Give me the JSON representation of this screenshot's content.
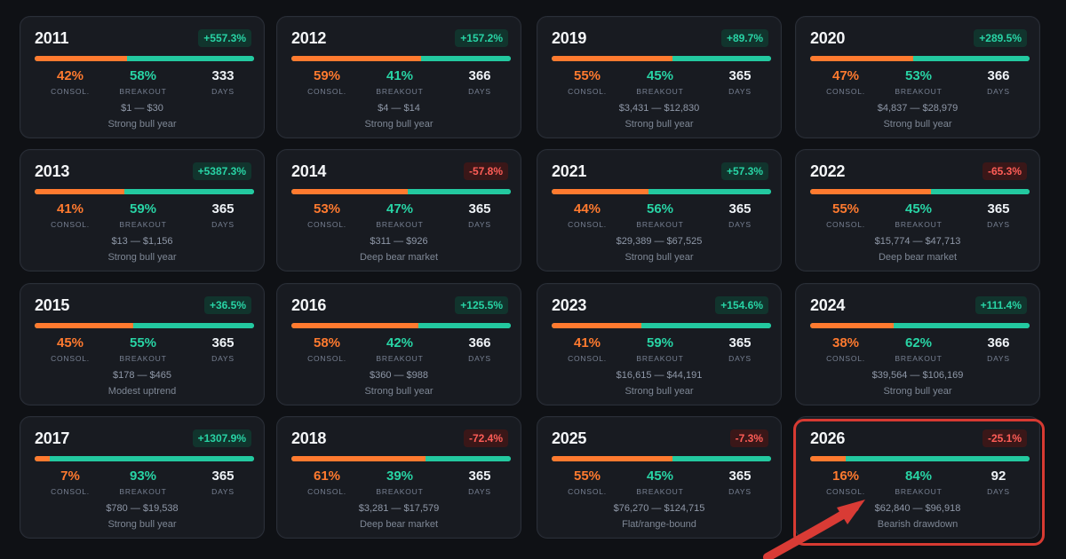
{
  "cards": [
    {
      "year": "2011",
      "change": "+557.3%",
      "tone": "pos",
      "consol_pct": "42%",
      "breakout_pct": "58%",
      "days": "333",
      "consol_label": "CONSOL.",
      "breakout_label": "BREAKOUT",
      "days_label": "DAYS",
      "range": "$1 — $30",
      "note": "Strong bull year",
      "consol_fraction": 0.42
    },
    {
      "year": "2013",
      "change": "+5387.3%",
      "tone": "pos",
      "consol_pct": "41%",
      "breakout_pct": "59%",
      "days": "365",
      "consol_label": "CONSOL.",
      "breakout_label": "BREAKOUT",
      "days_label": "DAYS",
      "range": "$13 — $1,156",
      "note": "Strong bull year",
      "consol_fraction": 0.41
    },
    {
      "year": "2015",
      "change": "+36.5%",
      "tone": "pos",
      "consol_pct": "45%",
      "breakout_pct": "55%",
      "days": "365",
      "consol_label": "CONSOL.",
      "breakout_label": "BREAKOUT",
      "days_label": "DAYS",
      "range": "$178 — $465",
      "note": "Modest uptrend",
      "consol_fraction": 0.45
    },
    {
      "year": "2017",
      "change": "+1307.9%",
      "tone": "pos",
      "consol_pct": "7%",
      "breakout_pct": "93%",
      "days": "365",
      "consol_label": "CONSOL.",
      "breakout_label": "BREAKOUT",
      "days_label": "DAYS",
      "range": "$780 — $19,538",
      "note": "Strong bull year",
      "consol_fraction": 0.07
    },
    {
      "year": "2012",
      "change": "+157.2%",
      "tone": "pos",
      "consol_pct": "59%",
      "breakout_pct": "41%",
      "days": "366",
      "consol_label": "CONSOL.",
      "breakout_label": "BREAKOUT",
      "days_label": "DAYS",
      "range": "$4 — $14",
      "note": "Strong bull year",
      "consol_fraction": 0.59
    },
    {
      "year": "2014",
      "change": "-57.8%",
      "tone": "neg",
      "consol_pct": "53%",
      "breakout_pct": "47%",
      "days": "365",
      "consol_label": "CONSOL.",
      "breakout_label": "BREAKOUT",
      "days_label": "DAYS",
      "range": "$311 — $926",
      "note": "Deep bear market",
      "consol_fraction": 0.53
    },
    {
      "year": "2016",
      "change": "+125.5%",
      "tone": "pos",
      "consol_pct": "58%",
      "breakout_pct": "42%",
      "days": "366",
      "consol_label": "CONSOL.",
      "breakout_label": "BREAKOUT",
      "days_label": "DAYS",
      "range": "$360 — $988",
      "note": "Strong bull year",
      "consol_fraction": 0.58
    },
    {
      "year": "2018",
      "change": "-72.4%",
      "tone": "neg",
      "consol_pct": "61%",
      "breakout_pct": "39%",
      "days": "365",
      "consol_label": "CONSOL.",
      "breakout_label": "BREAKOUT",
      "days_label": "DAYS",
      "range": "$3,281 — $17,579",
      "note": "Deep bear market",
      "consol_fraction": 0.61
    },
    {
      "year": "2019",
      "change": "+89.7%",
      "tone": "pos",
      "consol_pct": "55%",
      "breakout_pct": "45%",
      "days": "365",
      "consol_label": "CONSOL.",
      "breakout_label": "BREAKOUT",
      "days_label": "DAYS",
      "range": "$3,431 — $12,830",
      "note": "Strong bull year",
      "consol_fraction": 0.55
    },
    {
      "year": "2021",
      "change": "+57.3%",
      "tone": "pos",
      "consol_pct": "44%",
      "breakout_pct": "56%",
      "days": "365",
      "consol_label": "CONSOL.",
      "breakout_label": "BREAKOUT",
      "days_label": "DAYS",
      "range": "$29,389 — $67,525",
      "note": "Strong bull year",
      "consol_fraction": 0.44
    },
    {
      "year": "2023",
      "change": "+154.6%",
      "tone": "pos",
      "consol_pct": "41%",
      "breakout_pct": "59%",
      "days": "365",
      "consol_label": "CONSOL.",
      "breakout_label": "BREAKOUT",
      "days_label": "DAYS",
      "range": "$16,615 — $44,191",
      "note": "Strong bull year",
      "consol_fraction": 0.41
    },
    {
      "year": "2025",
      "change": "-7.3%",
      "tone": "neg",
      "consol_pct": "55%",
      "breakout_pct": "45%",
      "days": "365",
      "consol_label": "CONSOL.",
      "breakout_label": "BREAKOUT",
      "days_label": "DAYS",
      "range": "$76,270 — $124,715",
      "note": "Flat/range-bound",
      "consol_fraction": 0.55
    },
    {
      "year": "2020",
      "change": "+289.5%",
      "tone": "pos",
      "consol_pct": "47%",
      "breakout_pct": "53%",
      "days": "366",
      "consol_label": "CONSOL.",
      "breakout_label": "BREAKOUT",
      "days_label": "DAYS",
      "range": "$4,837 — $28,979",
      "note": "Strong bull year",
      "consol_fraction": 0.47
    },
    {
      "year": "2022",
      "change": "-65.3%",
      "tone": "neg",
      "consol_pct": "55%",
      "breakout_pct": "45%",
      "days": "365",
      "consol_label": "CONSOL.",
      "breakout_label": "BREAKOUT",
      "days_label": "DAYS",
      "range": "$15,774 — $47,713",
      "note": "Deep bear market",
      "consol_fraction": 0.55
    },
    {
      "year": "2024",
      "change": "+111.4%",
      "tone": "pos",
      "consol_pct": "38%",
      "breakout_pct": "62%",
      "days": "366",
      "consol_label": "CONSOL.",
      "breakout_label": "BREAKOUT",
      "days_label": "DAYS",
      "range": "$39,564 — $106,169",
      "note": "Strong bull year",
      "consol_fraction": 0.38
    },
    {
      "year": "2026",
      "change": "-25.1%",
      "tone": "neg",
      "consol_pct": "16%",
      "breakout_pct": "84%",
      "days": "92",
      "consol_label": "CONSOL.",
      "breakout_label": "BREAKOUT",
      "days_label": "DAYS",
      "range": "$62,840 — $96,918",
      "note": "Bearish drawdown",
      "consol_fraction": 0.16
    }
  ],
  "colors": {
    "background": "#0f1115",
    "card": "#181b21",
    "orange": "#ff7a2f",
    "green": "#28d4a5",
    "red": "#ff5d57",
    "highlight": "#d73a32"
  },
  "annotation": {
    "highlighted_year": "2026",
    "arrow_icon": "red-arrow-icon"
  }
}
